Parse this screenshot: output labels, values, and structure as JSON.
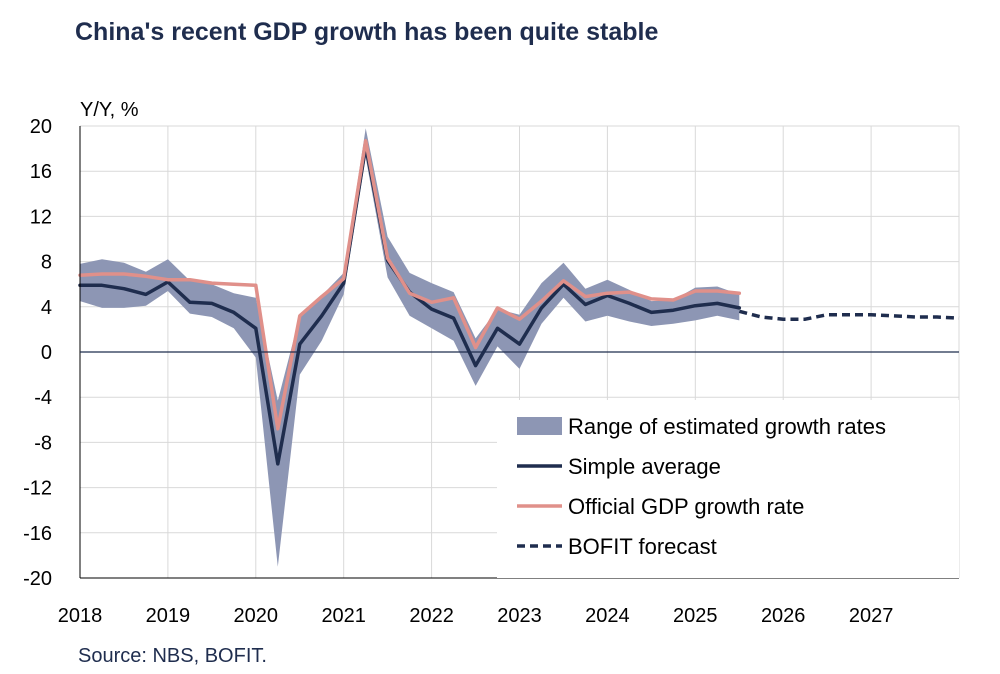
{
  "chart_data": {
    "type": "line",
    "title": "China's recent GDP growth has been quite stable",
    "ylabel": "Y/Y, %",
    "xlabel": "",
    "source": "Source: NBS, BOFIT.",
    "ylim": [
      -20,
      20
    ],
    "yticks": [
      -20,
      -16,
      -12,
      -8,
      -4,
      0,
      4,
      8,
      12,
      16,
      20
    ],
    "xlim": [
      2018,
      2028
    ],
    "xtick_labels": [
      "2018",
      "2019",
      "2020",
      "2021",
      "2022",
      "2023",
      "2024",
      "2025",
      "2026",
      "2027"
    ],
    "grid": true,
    "legend_position": "bottom-right",
    "colors": {
      "band": "#8d96b4",
      "average": "#1f2d4e",
      "official": "#e0908a",
      "forecast": "#1f2d4e",
      "title": "#1f2d4e"
    },
    "series": [
      {
        "name": "Range of estimated growth rates",
        "kind": "band",
        "x": [
          2018.0,
          2018.25,
          2018.5,
          2018.75,
          2019.0,
          2019.25,
          2019.5,
          2019.75,
          2020.0,
          2020.25,
          2020.5,
          2020.75,
          2021.0,
          2021.25,
          2021.5,
          2021.75,
          2022.0,
          2022.25,
          2022.5,
          2022.75,
          2023.0,
          2023.25,
          2023.5,
          2023.75,
          2024.0,
          2024.25,
          2024.5,
          2024.75,
          2025.0,
          2025.25,
          2025.5
        ],
        "low": [
          4.5,
          3.9,
          3.9,
          4.1,
          5.4,
          3.4,
          3.1,
          2.1,
          -0.5,
          -19.0,
          -2.0,
          1.0,
          5.1,
          17.2,
          6.6,
          3.2,
          2.1,
          1.0,
          -3.0,
          0.5,
          -1.5,
          2.5,
          4.8,
          2.7,
          3.2,
          2.7,
          2.3,
          2.5,
          2.8,
          3.2,
          2.8
        ],
        "high": [
          7.8,
          8.2,
          7.9,
          7.1,
          8.2,
          6.3,
          6.0,
          5.2,
          4.8,
          -4.3,
          3.2,
          5.0,
          7.0,
          19.8,
          10.2,
          7.0,
          6.1,
          5.3,
          1.2,
          3.8,
          3.3,
          6.1,
          7.9,
          5.6,
          6.4,
          5.5,
          4.5,
          4.6,
          5.7,
          5.8,
          5.1
        ]
      },
      {
        "name": "Simple average",
        "kind": "line",
        "x": [
          2018.0,
          2018.25,
          2018.5,
          2018.75,
          2019.0,
          2019.25,
          2019.5,
          2019.75,
          2020.0,
          2020.25,
          2020.5,
          2020.75,
          2021.0,
          2021.25,
          2021.5,
          2021.75,
          2022.0,
          2022.25,
          2022.5,
          2022.75,
          2023.0,
          2023.25,
          2023.5,
          2023.75,
          2024.0,
          2024.25,
          2024.5,
          2024.75,
          2025.0,
          2025.25,
          2025.5
        ],
        "values": [
          5.9,
          5.9,
          5.6,
          5.1,
          6.2,
          4.4,
          4.3,
          3.5,
          2.1,
          -9.9,
          0.7,
          3.2,
          6.1,
          18.2,
          8.1,
          5.3,
          3.8,
          3.0,
          -1.2,
          2.1,
          0.7,
          3.9,
          6.0,
          4.2,
          5.0,
          4.3,
          3.5,
          3.7,
          4.1,
          4.3,
          3.9
        ]
      },
      {
        "name": "Official GDP growth rate",
        "kind": "line",
        "x": [
          2018.0,
          2018.25,
          2018.5,
          2018.75,
          2019.0,
          2019.25,
          2019.5,
          2019.75,
          2020.0,
          2020.25,
          2020.5,
          2020.75,
          2021.0,
          2021.25,
          2021.5,
          2021.75,
          2022.0,
          2022.25,
          2022.5,
          2022.75,
          2023.0,
          2023.25,
          2023.5,
          2023.75,
          2024.0,
          2024.25,
          2024.5,
          2024.75,
          2025.0,
          2025.25,
          2025.5
        ],
        "values": [
          6.8,
          6.9,
          6.9,
          6.7,
          6.4,
          6.4,
          6.1,
          6.0,
          5.9,
          -6.8,
          3.2,
          4.9,
          6.5,
          18.7,
          8.3,
          5.2,
          4.4,
          4.8,
          0.4,
          3.9,
          2.9,
          4.5,
          6.3,
          4.9,
          5.2,
          5.3,
          4.7,
          4.6,
          5.4,
          5.4,
          5.2
        ]
      },
      {
        "name": "BOFIT forecast",
        "kind": "dashed",
        "x": [
          2025.5,
          2025.75,
          2026.0,
          2026.25,
          2026.5,
          2026.75,
          2027.0,
          2027.25,
          2027.5,
          2027.75,
          2028.0
        ],
        "values": [
          3.6,
          3.1,
          2.9,
          2.9,
          3.3,
          3.3,
          3.3,
          3.2,
          3.1,
          3.1,
          3.0
        ]
      }
    ]
  }
}
